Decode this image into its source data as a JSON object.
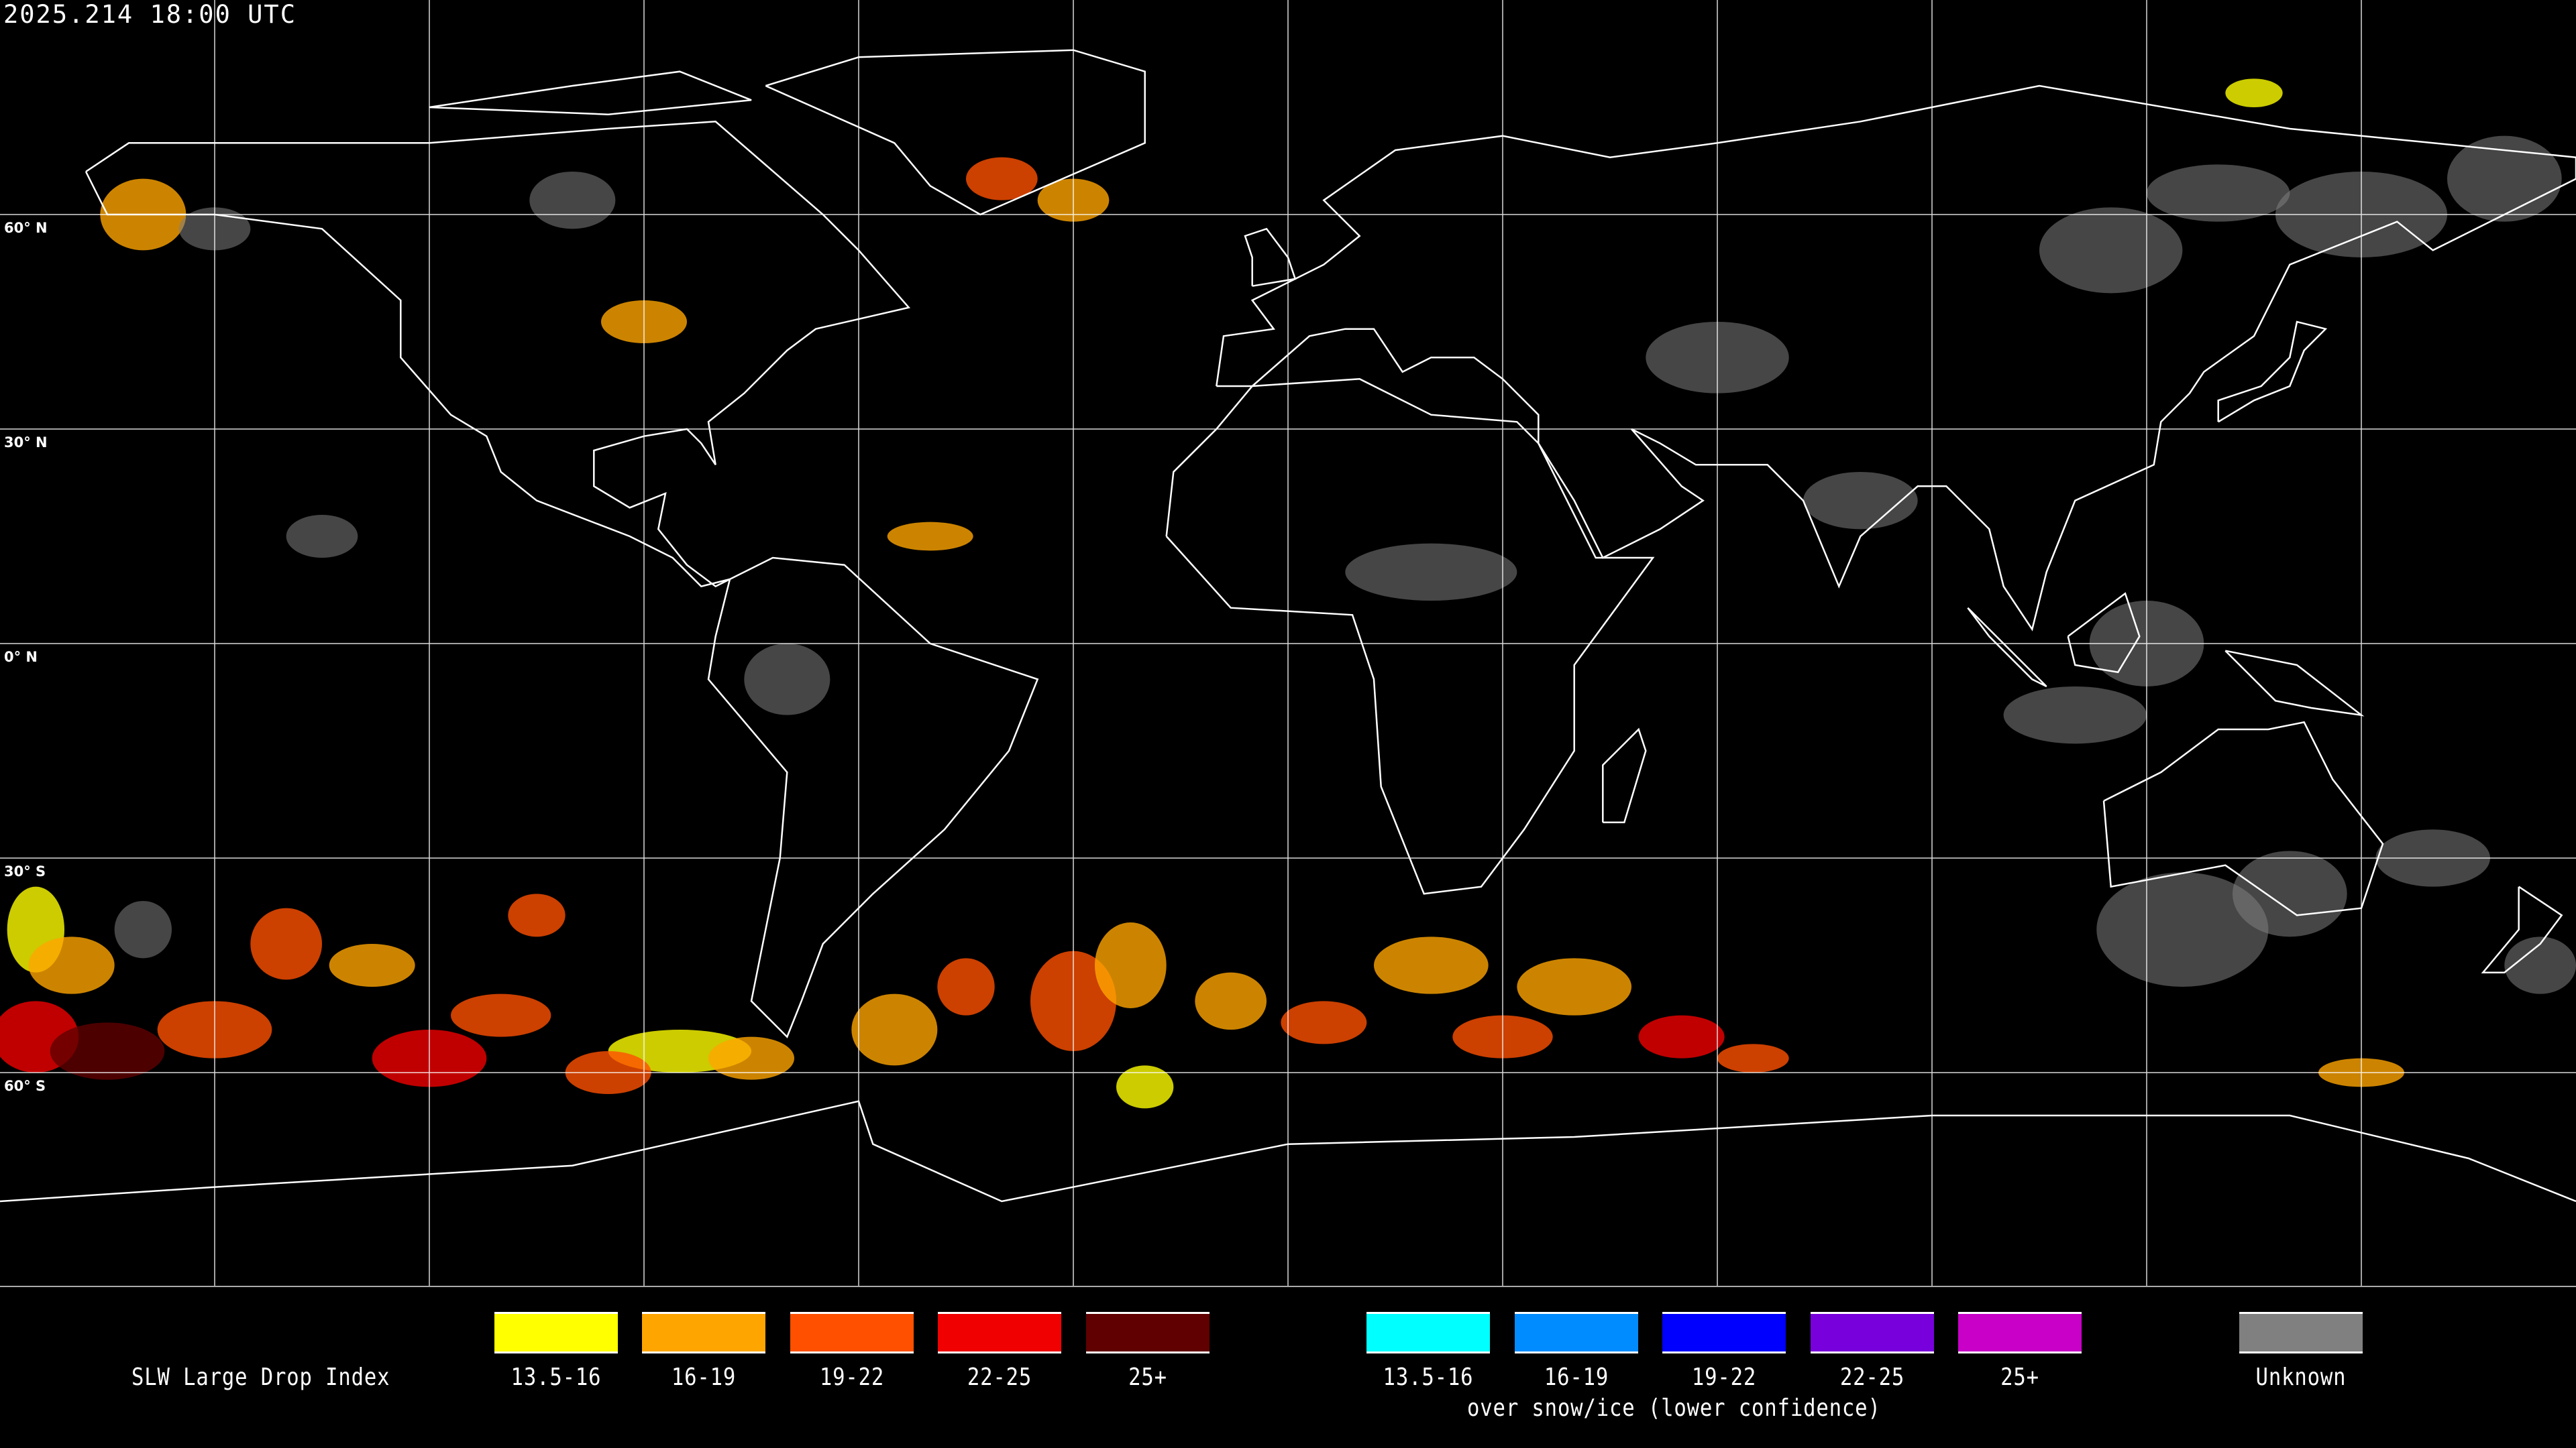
{
  "header": {
    "timestamp": "2025.214 18:00 UTC"
  },
  "map": {
    "projection": "equirectangular",
    "background": "#000000",
    "gridline_color": "#ffffff",
    "coastline_color": "#ffffff",
    "lat_labels": [
      "60° N",
      "30° N",
      "0° N",
      "30° S",
      "60° S"
    ]
  },
  "legend": {
    "title": "SLW Large Drop Index",
    "subtitle": "over snow/ice (lower confidence)",
    "items": [
      {
        "label": "13.5-16",
        "color": "#ffff00"
      },
      {
        "label": "16-19",
        "color": "#ffa500"
      },
      {
        "label": "19-22",
        "color": "#ff5000"
      },
      {
        "label": "22-25",
        "color": "#f00000"
      },
      {
        "label": "25+",
        "color": "#600000"
      }
    ],
    "snow_items": [
      {
        "label": "13.5-16",
        "color": "#00ffff"
      },
      {
        "label": "16-19",
        "color": "#008cff"
      },
      {
        "label": "19-22",
        "color": "#0000ff"
      },
      {
        "label": "22-25",
        "color": "#7800dc"
      },
      {
        "label": "25+",
        "color": "#c800c8"
      }
    ],
    "unknown": {
      "label": "Unknown",
      "color": "#808080"
    }
  }
}
